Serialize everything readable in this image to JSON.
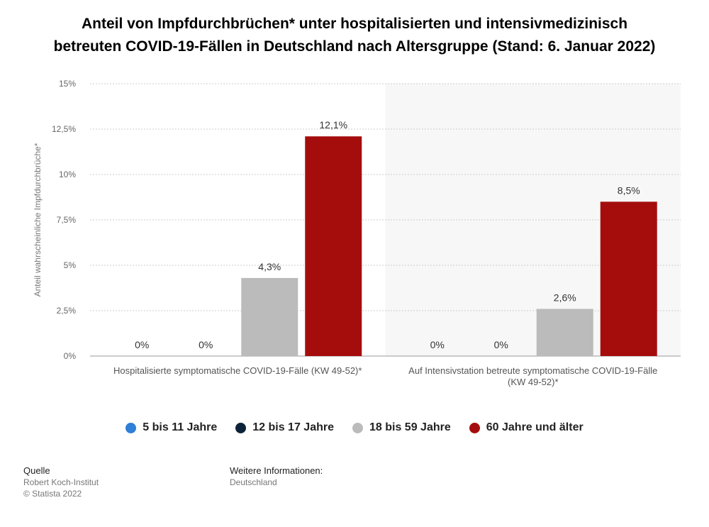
{
  "title_line1": "Anteil von Impfdurchbrüchen* unter hospitalisierten und intensivmedizinisch",
  "title_line2": "betreuten COVID-19-Fällen in Deutschland nach Altersgruppe (Stand: 6. Januar 2022)",
  "footer": {
    "source_head": "Quelle",
    "source_line1": "Robert Koch-Institut",
    "source_line2": "© Statista 2022",
    "info_head": "Weitere Informationen:",
    "info_line1": "Deutschland"
  },
  "chart_data": {
    "type": "bar",
    "ylabel": "Anteil wahrscheinliche Impfdurchbrüche*",
    "ylim": [
      0,
      15
    ],
    "yticks": [
      {
        "value": 0,
        "label": "0%"
      },
      {
        "value": 2.5,
        "label": "2,5%"
      },
      {
        "value": 5,
        "label": "5%"
      },
      {
        "value": 7.5,
        "label": "7,5%"
      },
      {
        "value": 10,
        "label": "10%"
      },
      {
        "value": 12.5,
        "label": "12,5%"
      },
      {
        "value": 15,
        "label": "15%"
      }
    ],
    "grid": true,
    "legend_position": "bottom",
    "categories": [
      [
        "Hospitalisierte symptomatische COVID-19-Fälle (KW 49-52)*"
      ],
      [
        "Auf Intensivstation betreute symptomatische COVID-19-Fälle",
        "(KW 49-52)*"
      ]
    ],
    "series": [
      {
        "name": "5 bis 11 Jahre",
        "color": "#2f7ed8",
        "values": [
          0,
          0
        ],
        "labels": [
          "0%",
          "0%"
        ]
      },
      {
        "name": "12 bis 17 Jahre",
        "color": "#0d233a",
        "values": [
          0,
          0
        ],
        "labels": [
          "0%",
          "0%"
        ]
      },
      {
        "name": "18 bis 59 Jahre",
        "color": "#bbbbbb",
        "values": [
          4.3,
          2.6
        ],
        "labels": [
          "4,3%",
          "2,6%"
        ]
      },
      {
        "name": "60 Jahre und älter",
        "color": "#a50d0d",
        "values": [
          12.1,
          8.5
        ],
        "labels": [
          "12,1%",
          "8,5%"
        ]
      }
    ]
  }
}
